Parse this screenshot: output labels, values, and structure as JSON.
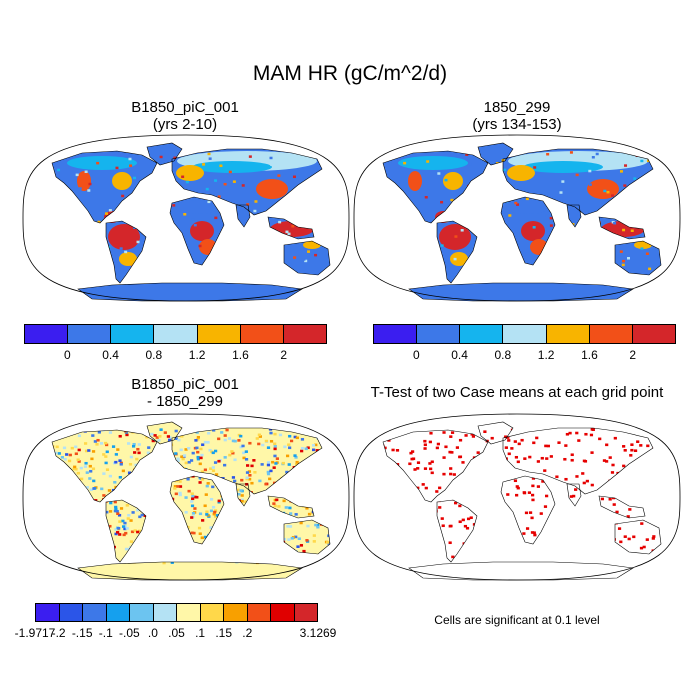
{
  "title": "MAM HR (gC/m^2/d)",
  "panels": {
    "top_left": {
      "title_line1": "B1850_piC_001",
      "title_line2": "(yrs 2-10)"
    },
    "top_right": {
      "title_line1": "1850_299",
      "title_line2": "(yrs 134-153)"
    },
    "bottom_left": {
      "title_line1": "B1850_piC_001",
      "title_line2": "- 1850_299"
    },
    "bottom_right": {
      "title": "T-Test of two Case means at each grid point",
      "note": "Cells are significant at 0.1 level"
    }
  },
  "colors": {
    "ocean": "#ffffff",
    "coast": "#000000",
    "ttest_sig": "#e60000"
  },
  "chart_data": [
    {
      "type": "heatmap",
      "title": "B1850_piC_001 (yrs 2-10)",
      "map_projection": "robinson",
      "colorbar": {
        "levels": [
          "0",
          "0.4",
          "0.8",
          "1.2",
          "1.6",
          "2"
        ],
        "colors": [
          "#3b1ef0",
          "#3d78e8",
          "#15b4ee",
          "#b4e2f4",
          "#f8b400",
          "#f25018",
          "#d4262a"
        ],
        "orientation": "horizontal"
      },
      "regions": [
        {
          "region": "Amazon / tropical South America",
          "value_class": ">2"
        },
        {
          "region": "Central Africa / Congo",
          "value_class": ">2"
        },
        {
          "region": "Southeast Asia / Indonesia",
          "value_class": ">2"
        },
        {
          "region": "Eastern United States",
          "value_class": "1.2-1.6"
        },
        {
          "region": "Boreal Eurasia / Siberia",
          "value_class": "0.8-1.2"
        },
        {
          "region": "Arctic Canada",
          "value_class": "0.4-0.8"
        },
        {
          "region": "Antarctica",
          "value_class": "0-0.4"
        },
        {
          "region": "Sahara / deserts",
          "value_class": "0-0.4"
        }
      ]
    },
    {
      "type": "heatmap",
      "title": "1850_299 (yrs 134-153)",
      "map_projection": "robinson",
      "colorbar": {
        "levels": [
          "0",
          "0.4",
          "0.8",
          "1.2",
          "1.6",
          "2"
        ],
        "colors": [
          "#3b1ef0",
          "#3d78e8",
          "#15b4ee",
          "#b4e2f4",
          "#f8b400",
          "#f25018",
          "#d4262a"
        ],
        "orientation": "horizontal"
      },
      "regions": [
        {
          "region": "Amazon / tropical South America",
          "value_class": ">2"
        },
        {
          "region": "Central Africa / Congo",
          "value_class": ">2"
        },
        {
          "region": "Southeast Asia / Indonesia",
          "value_class": ">2"
        },
        {
          "region": "Eastern United States",
          "value_class": "1.2-1.6"
        },
        {
          "region": "Boreal Eurasia / Siberia",
          "value_class": "0.8-1.2"
        },
        {
          "region": "Antarctica",
          "value_class": "0-0.4"
        }
      ]
    },
    {
      "type": "heatmap",
      "title": "B1850_piC_001 - 1850_299",
      "map_projection": "robinson",
      "colorbar": {
        "levels": [
          "-1.9717",
          "-.2",
          "-.15",
          "-.1",
          "-.05",
          ".0",
          ".05",
          ".1",
          ".15",
          ".2",
          "3.1269"
        ],
        "colors": [
          "#3b1ef0",
          "#2b55e8",
          "#3d78e8",
          "#15a0ee",
          "#6cc4f0",
          "#b4e2f4",
          "#fff7a8",
          "#ffd84a",
          "#f8a000",
          "#f25018",
          "#e00000",
          "#d4262a"
        ],
        "orientation": "horizontal"
      }
    },
    {
      "type": "heatmap",
      "title": "T-Test of two Case means at each grid point",
      "map_projection": "robinson",
      "significance_level": 0.1
    }
  ]
}
